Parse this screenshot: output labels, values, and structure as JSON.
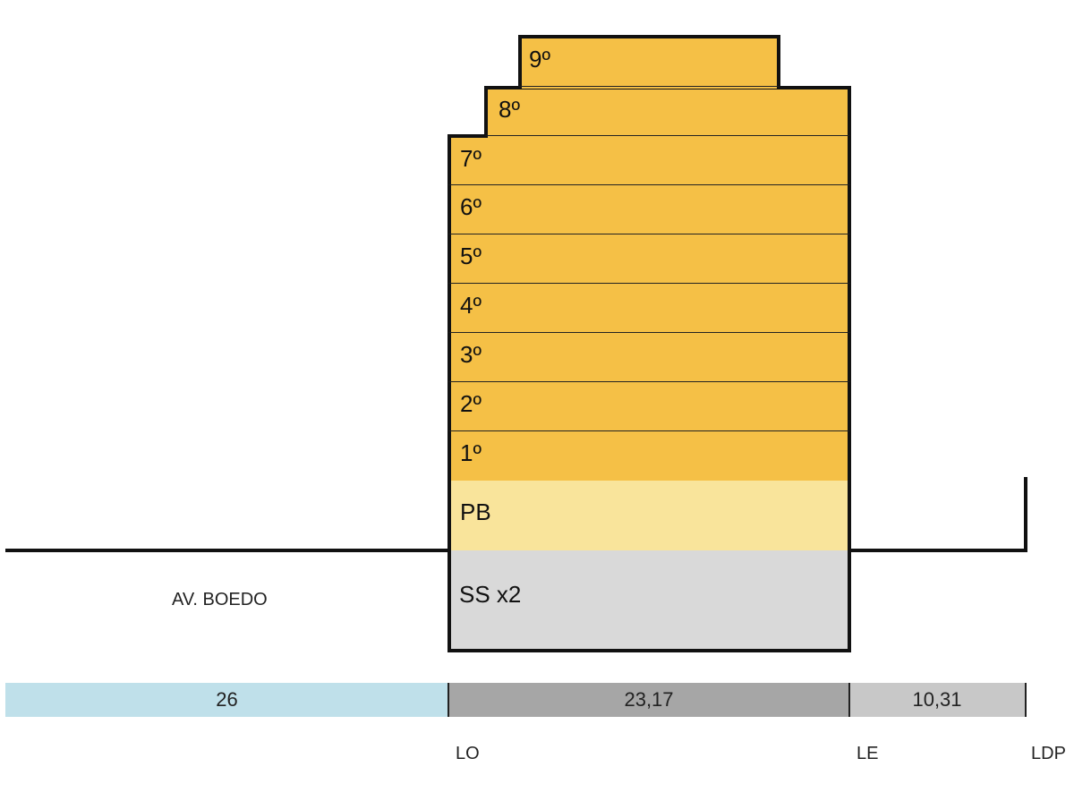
{
  "floors": {
    "f9": "9º",
    "f8": "8º",
    "f7": "7º",
    "f6": "6º",
    "f5": "5º",
    "f4": "4º",
    "f3": "3º",
    "f2": "2º",
    "f1": "1º",
    "pb": "PB",
    "ss": "SS x2"
  },
  "street_label": "AV. BOEDO",
  "dimensions": {
    "front": "26",
    "built": "23,17",
    "back": "10,31"
  },
  "lines": {
    "lo": "LO",
    "le": "LE",
    "ldp": "LDP"
  },
  "colors": {
    "upper_floors": "#f5c046",
    "ground_floor": "#f9e49b",
    "basement": "#d9d9d9",
    "front_setback": "#bfe0ea",
    "built_depth": "#a6a6a6",
    "back_depth": "#c8c8c8"
  }
}
